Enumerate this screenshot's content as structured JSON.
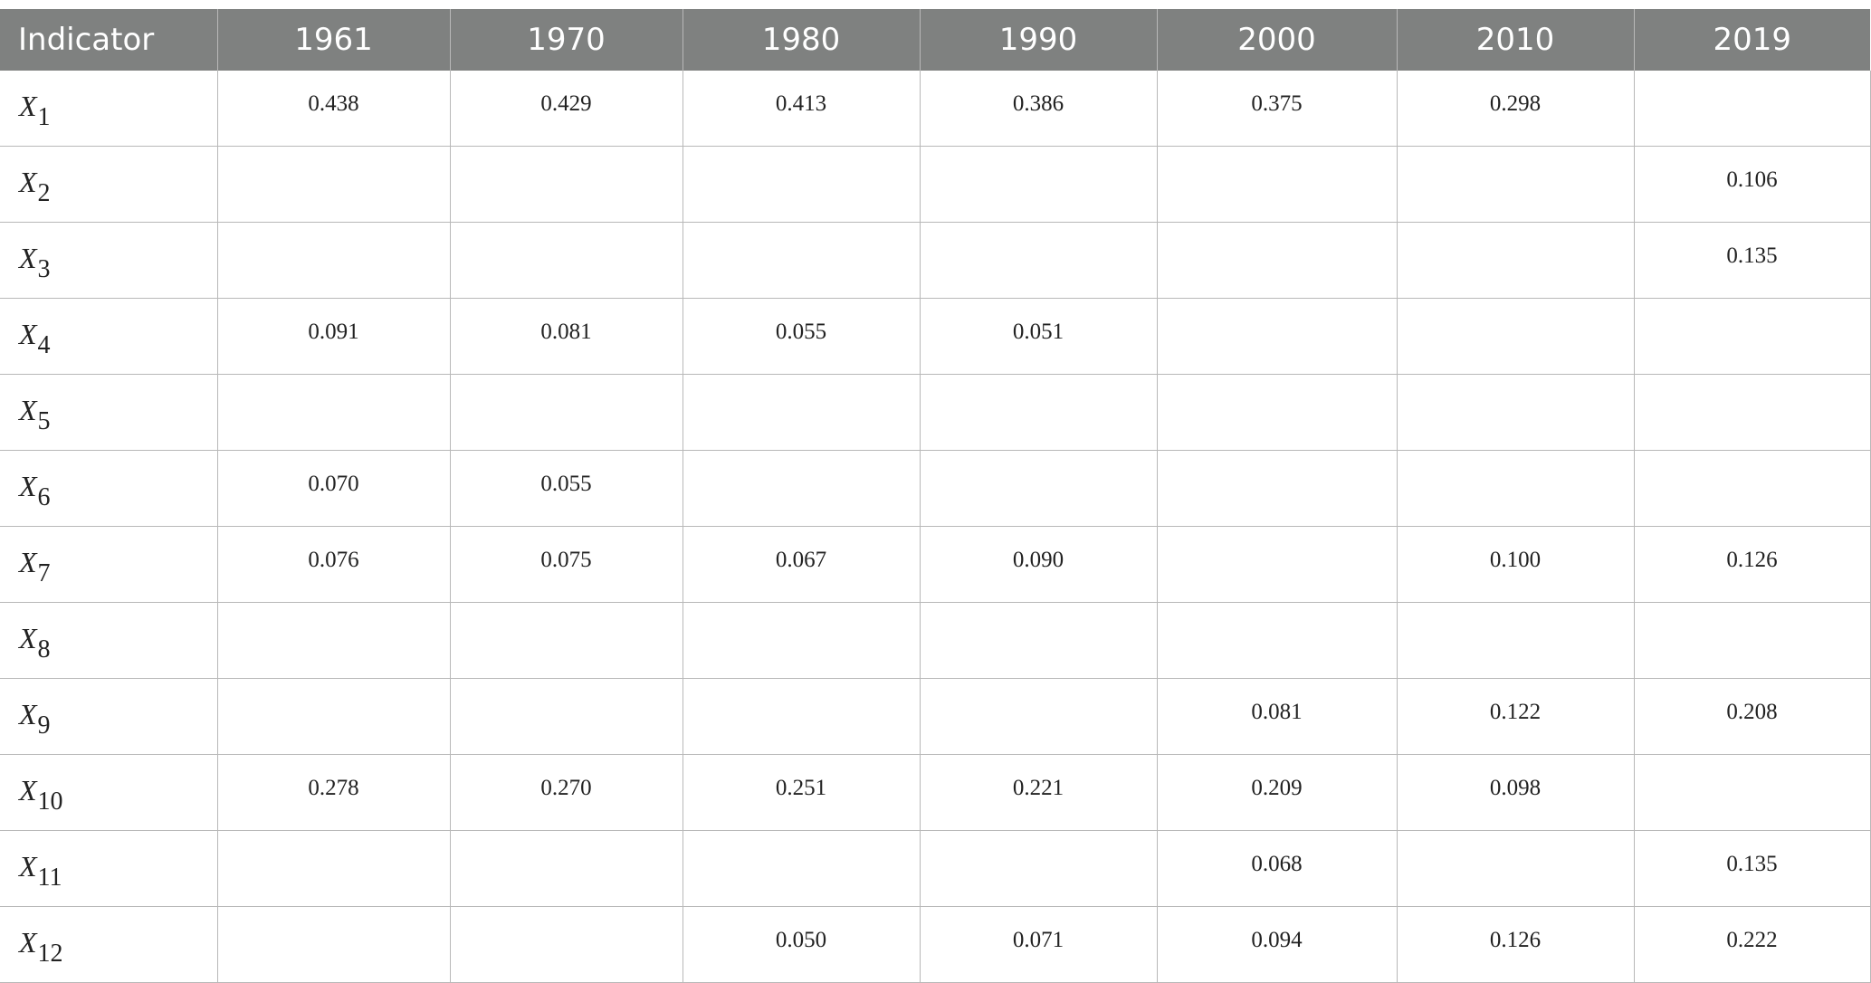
{
  "table": {
    "headers": [
      "Indicator",
      "1961",
      "1970",
      "1980",
      "1990",
      "2000",
      "2010",
      "2019"
    ],
    "rows": [
      {
        "var": "X",
        "sub": "1",
        "cells": [
          "0.438",
          "0.429",
          "0.413",
          "0.386",
          "0.375",
          "0.298",
          ""
        ]
      },
      {
        "var": "X",
        "sub": "2",
        "cells": [
          "",
          "",
          "",
          "",
          "",
          "",
          "0.106"
        ]
      },
      {
        "var": "X",
        "sub": "3",
        "cells": [
          "",
          "",
          "",
          "",
          "",
          "",
          "0.135"
        ]
      },
      {
        "var": "X",
        "sub": "4",
        "cells": [
          "0.091",
          "0.081",
          "0.055",
          "0.051",
          "",
          "",
          ""
        ]
      },
      {
        "var": "X",
        "sub": "5",
        "cells": [
          "",
          "",
          "",
          "",
          "",
          "",
          ""
        ]
      },
      {
        "var": "X",
        "sub": "6",
        "cells": [
          "0.070",
          "0.055",
          "",
          "",
          "",
          "",
          ""
        ]
      },
      {
        "var": "X",
        "sub": "7",
        "cells": [
          "0.076",
          "0.075",
          "0.067",
          "0.090",
          "",
          "0.100",
          "0.126"
        ]
      },
      {
        "var": "X",
        "sub": "8",
        "cells": [
          "",
          "",
          "",
          "",
          "",
          "",
          ""
        ]
      },
      {
        "var": "X",
        "sub": "9",
        "cells": [
          "",
          "",
          "",
          "",
          "0.081",
          "0.122",
          "0.208"
        ]
      },
      {
        "var": "X",
        "sub": "10",
        "cells": [
          "0.278",
          "0.270",
          "0.251",
          "0.221",
          "0.209",
          "0.098",
          ""
        ]
      },
      {
        "var": "X",
        "sub": "11",
        "cells": [
          "",
          "",
          "",
          "",
          "0.068",
          "",
          "0.135"
        ]
      },
      {
        "var": "X",
        "sub": "12",
        "cells": [
          "",
          "",
          "0.050",
          "0.071",
          "0.094",
          "0.126",
          "0.222"
        ]
      }
    ]
  }
}
